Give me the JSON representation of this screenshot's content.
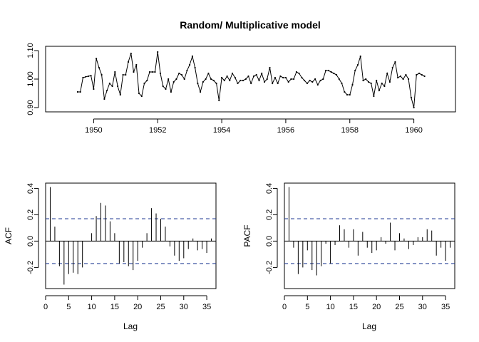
{
  "chart_data": [
    {
      "id": "ts",
      "type": "line",
      "title": "Random/ Multiplicative model",
      "xlabel": "",
      "ylabel": "",
      "xlim": [
        1948.5,
        1961.3
      ],
      "ylim": [
        0.885,
        1.115
      ],
      "x_ticks": [
        1950,
        1952,
        1954,
        1956,
        1958,
        1960
      ],
      "y_ticks": [
        0.9,
        1.0,
        1.1
      ],
      "y_tick_labels": [
        "0.90",
        "1.00",
        "1.10"
      ],
      "grid": false,
      "x_start": 1949.5,
      "x_step": 0.083333,
      "values": [
        0.955,
        0.955,
        1.005,
        1.008,
        1.01,
        1.012,
        0.965,
        1.072,
        1.04,
        1.015,
        0.93,
        0.96,
        0.985,
        0.975,
        1.025,
        0.975,
        0.945,
        1.015,
        1.015,
        1.06,
        1.09,
        1.025,
        1.05,
        0.95,
        0.94,
        0.985,
        0.995,
        1.025,
        1.025,
        1.025,
        1.095,
        1.02,
        0.975,
        0.965,
        1.0,
        0.955,
        0.99,
        1.0,
        1.02,
        1.015,
        1.0,
        1.03,
        1.05,
        1.08,
        1.04,
        0.985,
        0.955,
        0.99,
        1.0,
        1.02,
        1.0,
        0.995,
        0.985,
        0.925,
        1.005,
        0.995,
        1.01,
        0.995,
        1.02,
        1.005,
        0.985,
        0.995,
        0.995,
        1.0,
        1.01,
        0.985,
        1.01,
        1.015,
        0.995,
        1.02,
        0.99,
        1.0,
        1.04,
        0.985,
        1.005,
        0.985,
        1.01,
        1.005,
        1.005,
        0.99,
        1.0,
        1.0,
        1.025,
        1.02,
        1.005,
        0.995,
        0.985,
        0.995,
        0.99,
        1.0,
        0.98,
        0.995,
        1.0,
        1.03,
        1.03,
        1.025,
        1.02,
        1.015,
        1.0,
        0.985,
        0.955,
        0.945,
        0.945,
        0.98,
        1.03,
        1.05,
        1.08,
        0.995,
        1.0,
        0.99,
        0.985,
        0.94,
        0.995,
        0.96,
        0.985,
        0.975,
        1.02,
        0.99,
        1.04,
        1.06,
        1.005,
        1.01,
        1.0,
        1.015,
        1.0,
        0.935,
        0.9,
        1.015,
        1.02,
        1.015,
        1.01
      ]
    },
    {
      "id": "acf",
      "type": "bar",
      "title": "",
      "xlabel": "Lag",
      "ylabel": "ACF",
      "xlim": [
        0,
        37
      ],
      "ylim": [
        -0.36,
        0.44
      ],
      "x_ticks": [
        0,
        5,
        10,
        15,
        20,
        25,
        30,
        35
      ],
      "y_ticks": [
        -0.2,
        0.0,
        0.2,
        0.4
      ],
      "y_tick_labels": [
        "-0.2",
        "0.0",
        "0.2",
        "0.4"
      ],
      "confidence_band": 0.17,
      "lags": [
        1,
        2,
        3,
        4,
        5,
        6,
        7,
        8,
        9,
        10,
        11,
        12,
        13,
        14,
        15,
        16,
        17,
        18,
        19,
        20,
        21,
        22,
        23,
        24,
        25,
        26,
        27,
        28,
        29,
        30,
        31,
        32,
        33,
        34,
        35,
        36
      ],
      "values": [
        0.41,
        0.11,
        -0.19,
        -0.33,
        -0.25,
        -0.24,
        -0.25,
        -0.2,
        0.0,
        0.06,
        0.19,
        0.29,
        0.27,
        0.15,
        0.06,
        -0.17,
        -0.16,
        -0.19,
        -0.22,
        -0.15,
        -0.05,
        0.06,
        0.25,
        0.21,
        0.17,
        0.11,
        -0.04,
        -0.11,
        -0.15,
        -0.13,
        -0.06,
        0.02,
        -0.07,
        -0.06,
        -0.09,
        0.02
      ]
    },
    {
      "id": "pacf",
      "type": "bar",
      "title": "",
      "xlabel": "Lag",
      "ylabel": "PACF",
      "xlim": [
        0,
        37
      ],
      "ylim": [
        -0.36,
        0.44
      ],
      "x_ticks": [
        0,
        5,
        10,
        15,
        20,
        25,
        30,
        35
      ],
      "y_ticks": [
        -0.2,
        0.0,
        0.2,
        0.4
      ],
      "y_tick_labels": [
        "-0.2",
        "0.0",
        "0.2",
        "0.4"
      ],
      "confidence_band": 0.17,
      "lags": [
        1,
        2,
        3,
        4,
        5,
        6,
        7,
        8,
        9,
        10,
        11,
        12,
        13,
        14,
        15,
        16,
        17,
        18,
        19,
        20,
        21,
        22,
        23,
        24,
        25,
        26,
        27,
        28,
        29,
        30,
        31,
        32,
        33,
        34,
        35,
        36
      ],
      "values": [
        0.41,
        -0.05,
        -0.25,
        -0.2,
        -0.07,
        -0.22,
        -0.26,
        -0.19,
        -0.02,
        -0.17,
        -0.03,
        0.12,
        0.09,
        -0.05,
        0.09,
        -0.11,
        0.07,
        -0.05,
        -0.09,
        -0.07,
        0.03,
        -0.02,
        0.14,
        -0.07,
        0.06,
        0.02,
        -0.06,
        -0.03,
        0.03,
        0.03,
        0.09,
        0.08,
        -0.11,
        -0.05,
        -0.15,
        -0.05
      ]
    }
  ]
}
